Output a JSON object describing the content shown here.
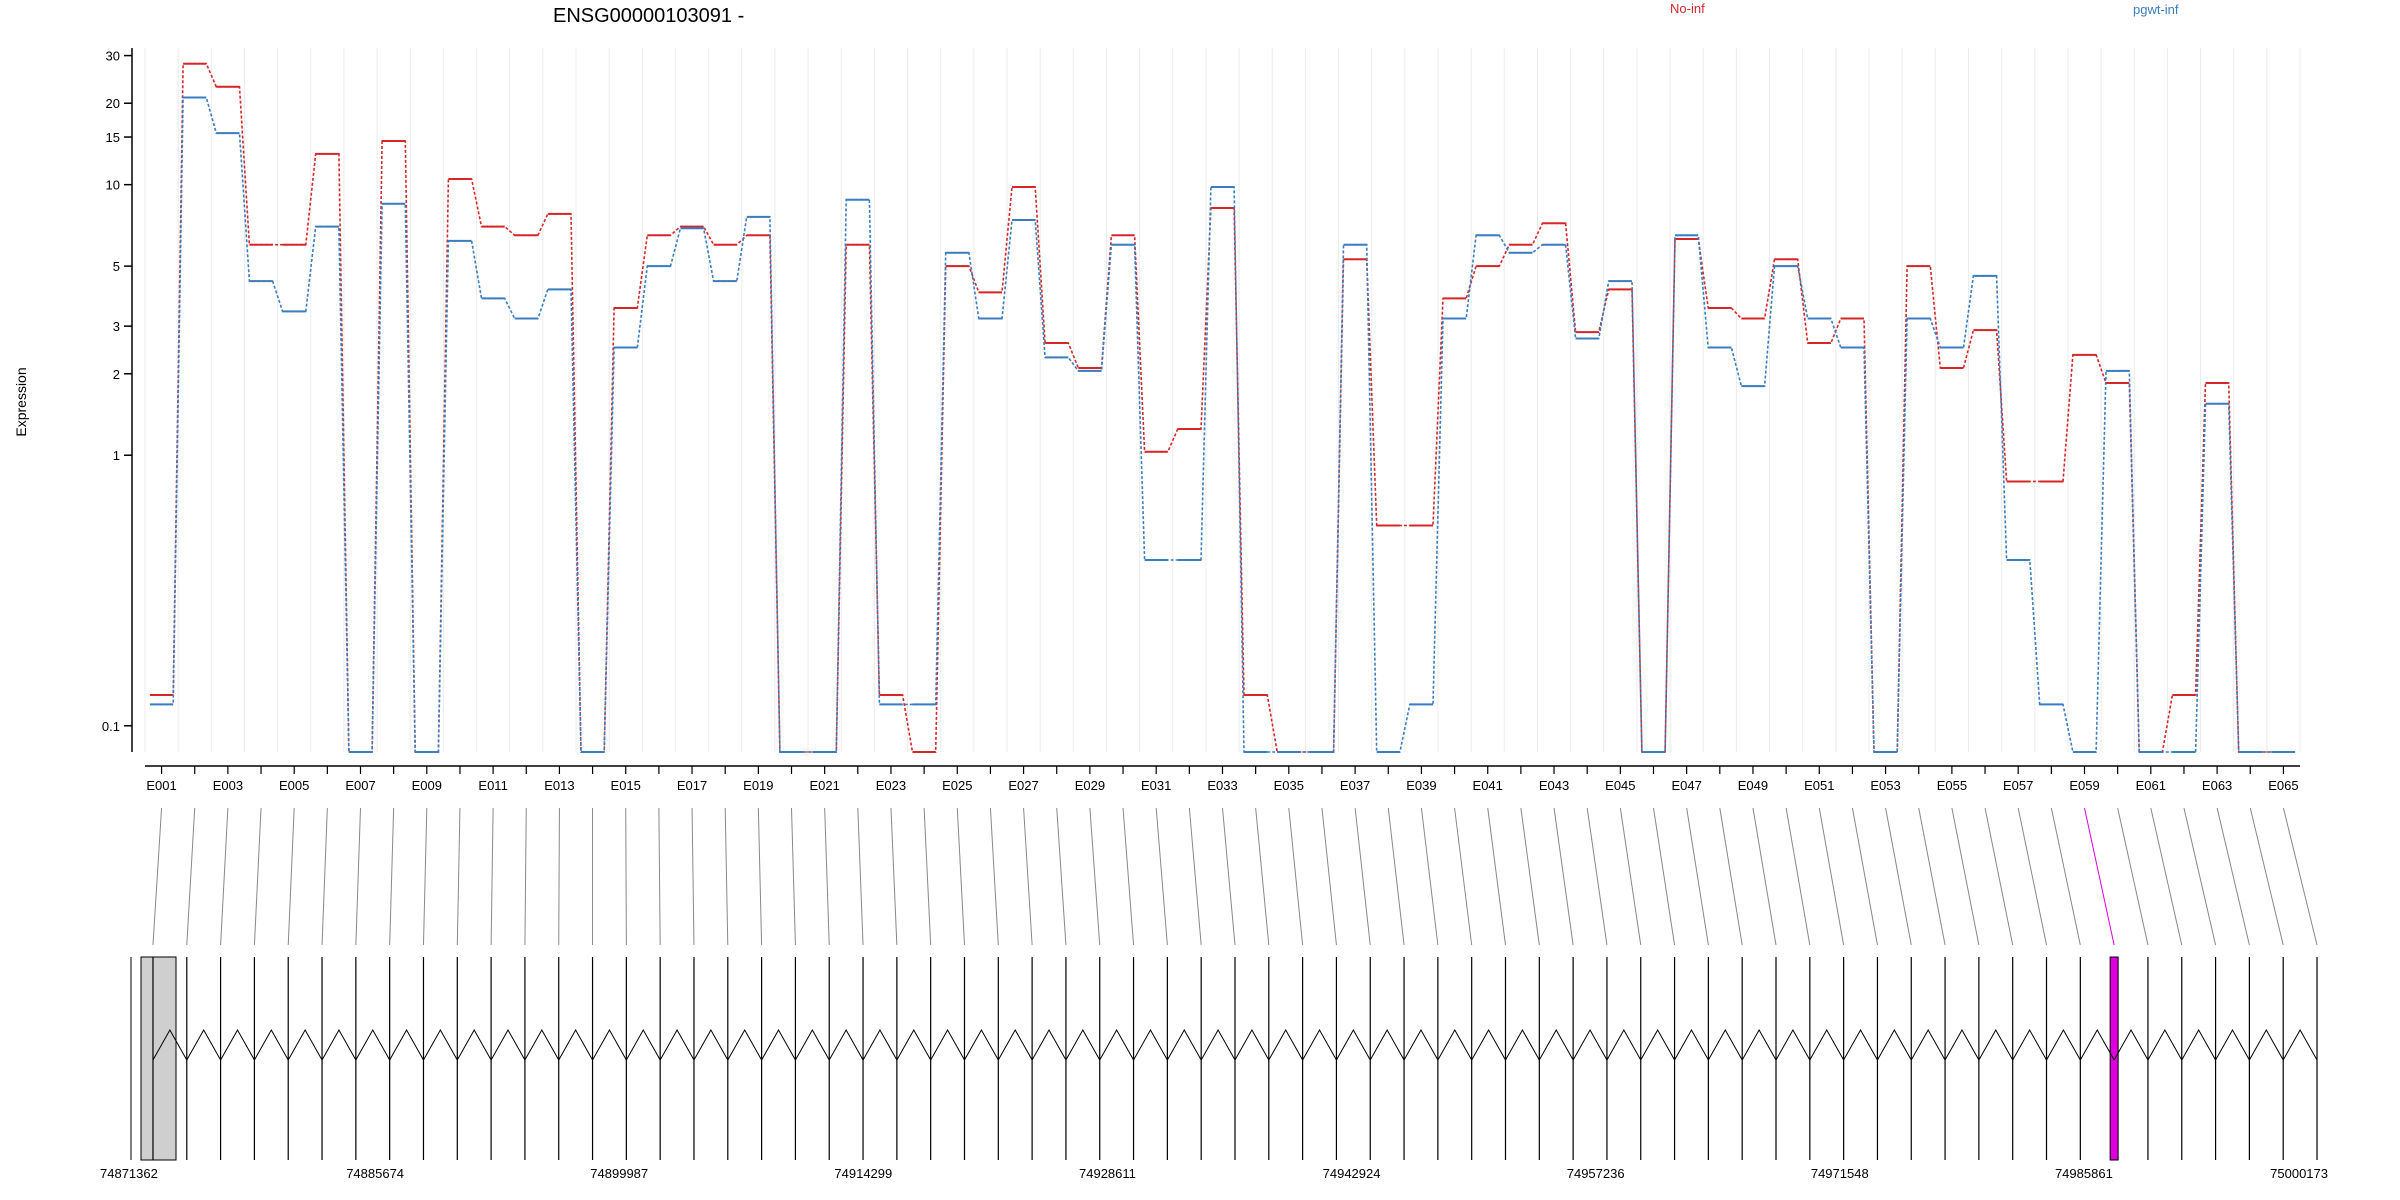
{
  "chart_data": {
    "type": "line",
    "title": "ENSG00000103091 -",
    "ylabel": "Expression",
    "y_scale": "log",
    "ylim": [
      0.08,
      32
    ],
    "y_ticks": [
      0.1,
      1,
      2,
      3,
      5,
      10,
      15,
      20,
      30
    ],
    "y_tick_labels": [
      "0.1",
      "1",
      "2",
      "3",
      "5",
      "10",
      "15",
      "20",
      "30"
    ],
    "grid": "vertical",
    "legend": "top-right",
    "colors": {
      "No-inf": "#d62728",
      "pgwt-inf": "#3a7dc0",
      "highlight": "#dd00dd"
    },
    "categories": [
      "E001",
      "E002",
      "E003",
      "E004",
      "E005",
      "E006",
      "E007",
      "E008",
      "E009",
      "E010",
      "E011",
      "E012",
      "E013",
      "E014",
      "E015",
      "E016",
      "E017",
      "E018",
      "E019",
      "E020",
      "E021",
      "E022",
      "E023",
      "E024",
      "E025",
      "E026",
      "E027",
      "E028",
      "E029",
      "E030",
      "E031",
      "E032",
      "E033",
      "E034",
      "E035",
      "E036",
      "E037",
      "E038",
      "E039",
      "E040",
      "E041",
      "E042",
      "E043",
      "E044",
      "E045",
      "E046",
      "E047",
      "E048",
      "E049",
      "E050",
      "E051",
      "E052",
      "E053",
      "E054",
      "E055",
      "E056",
      "E057",
      "E058",
      "E059",
      "E060",
      "E061",
      "E062",
      "E063",
      "E064",
      "E065"
    ],
    "x_tick_labels": [
      "E001",
      "E003",
      "E005",
      "E007",
      "E009",
      "E011",
      "E013",
      "E015",
      "E017",
      "E019",
      "E021",
      "E023",
      "E025",
      "E027",
      "E029",
      "E031",
      "E033",
      "E035",
      "E037",
      "E039",
      "E041",
      "E043",
      "E045",
      "E047",
      "E049",
      "E051",
      "E053",
      "E055",
      "E057",
      "E059",
      "E061",
      "E063",
      "E065"
    ],
    "series": [
      {
        "name": "No-inf",
        "values": [
          0.13,
          28,
          23,
          6,
          6,
          13,
          0.08,
          14.5,
          0.08,
          10.5,
          7,
          6.5,
          7.8,
          0.08,
          3.5,
          6.5,
          7,
          6,
          6.5,
          0.08,
          0.08,
          6,
          0.13,
          0.08,
          5,
          4,
          9.8,
          2.6,
          2.1,
          6.5,
          1.03,
          1.25,
          8.2,
          0.13,
          0.08,
          0.08,
          5.3,
          0.55,
          0.55,
          3.8,
          5,
          6,
          7.2,
          2.85,
          4.1,
          0.08,
          6.3,
          3.5,
          3.2,
          5.3,
          2.6,
          3.2,
          0.08,
          5,
          2.1,
          2.9,
          0.8,
          0.8,
          2.35,
          1.85,
          0.08,
          0.13,
          1.85,
          0.08,
          0.08
        ]
      },
      {
        "name": "pgwt-inf",
        "values": [
          0.12,
          21,
          15.5,
          4.4,
          3.4,
          7,
          0.08,
          8.5,
          0.08,
          6.2,
          3.8,
          3.2,
          4.1,
          0.08,
          2.5,
          5,
          6.9,
          4.4,
          7.6,
          0.08,
          0.08,
          8.8,
          0.12,
          0.12,
          5.6,
          3.2,
          7.4,
          2.3,
          2.05,
          6,
          0.41,
          0.41,
          9.8,
          0.08,
          0.08,
          0.08,
          6,
          0.08,
          0.12,
          3.2,
          6.5,
          5.6,
          6,
          2.7,
          4.4,
          0.08,
          6.5,
          2.5,
          1.8,
          5,
          3.2,
          2.5,
          0.08,
          3.2,
          2.5,
          4.6,
          0.41,
          0.12,
          0.08,
          2.05,
          0.08,
          0.08,
          1.55,
          0.08,
          0.08
        ]
      }
    ],
    "highlight_exon": "E059",
    "genomic_axis_labels": [
      "74871362",
      "74885674",
      "74899987",
      "74914299",
      "74928611",
      "74942924",
      "74957236",
      "74971548",
      "74985861",
      "75000173"
    ]
  }
}
